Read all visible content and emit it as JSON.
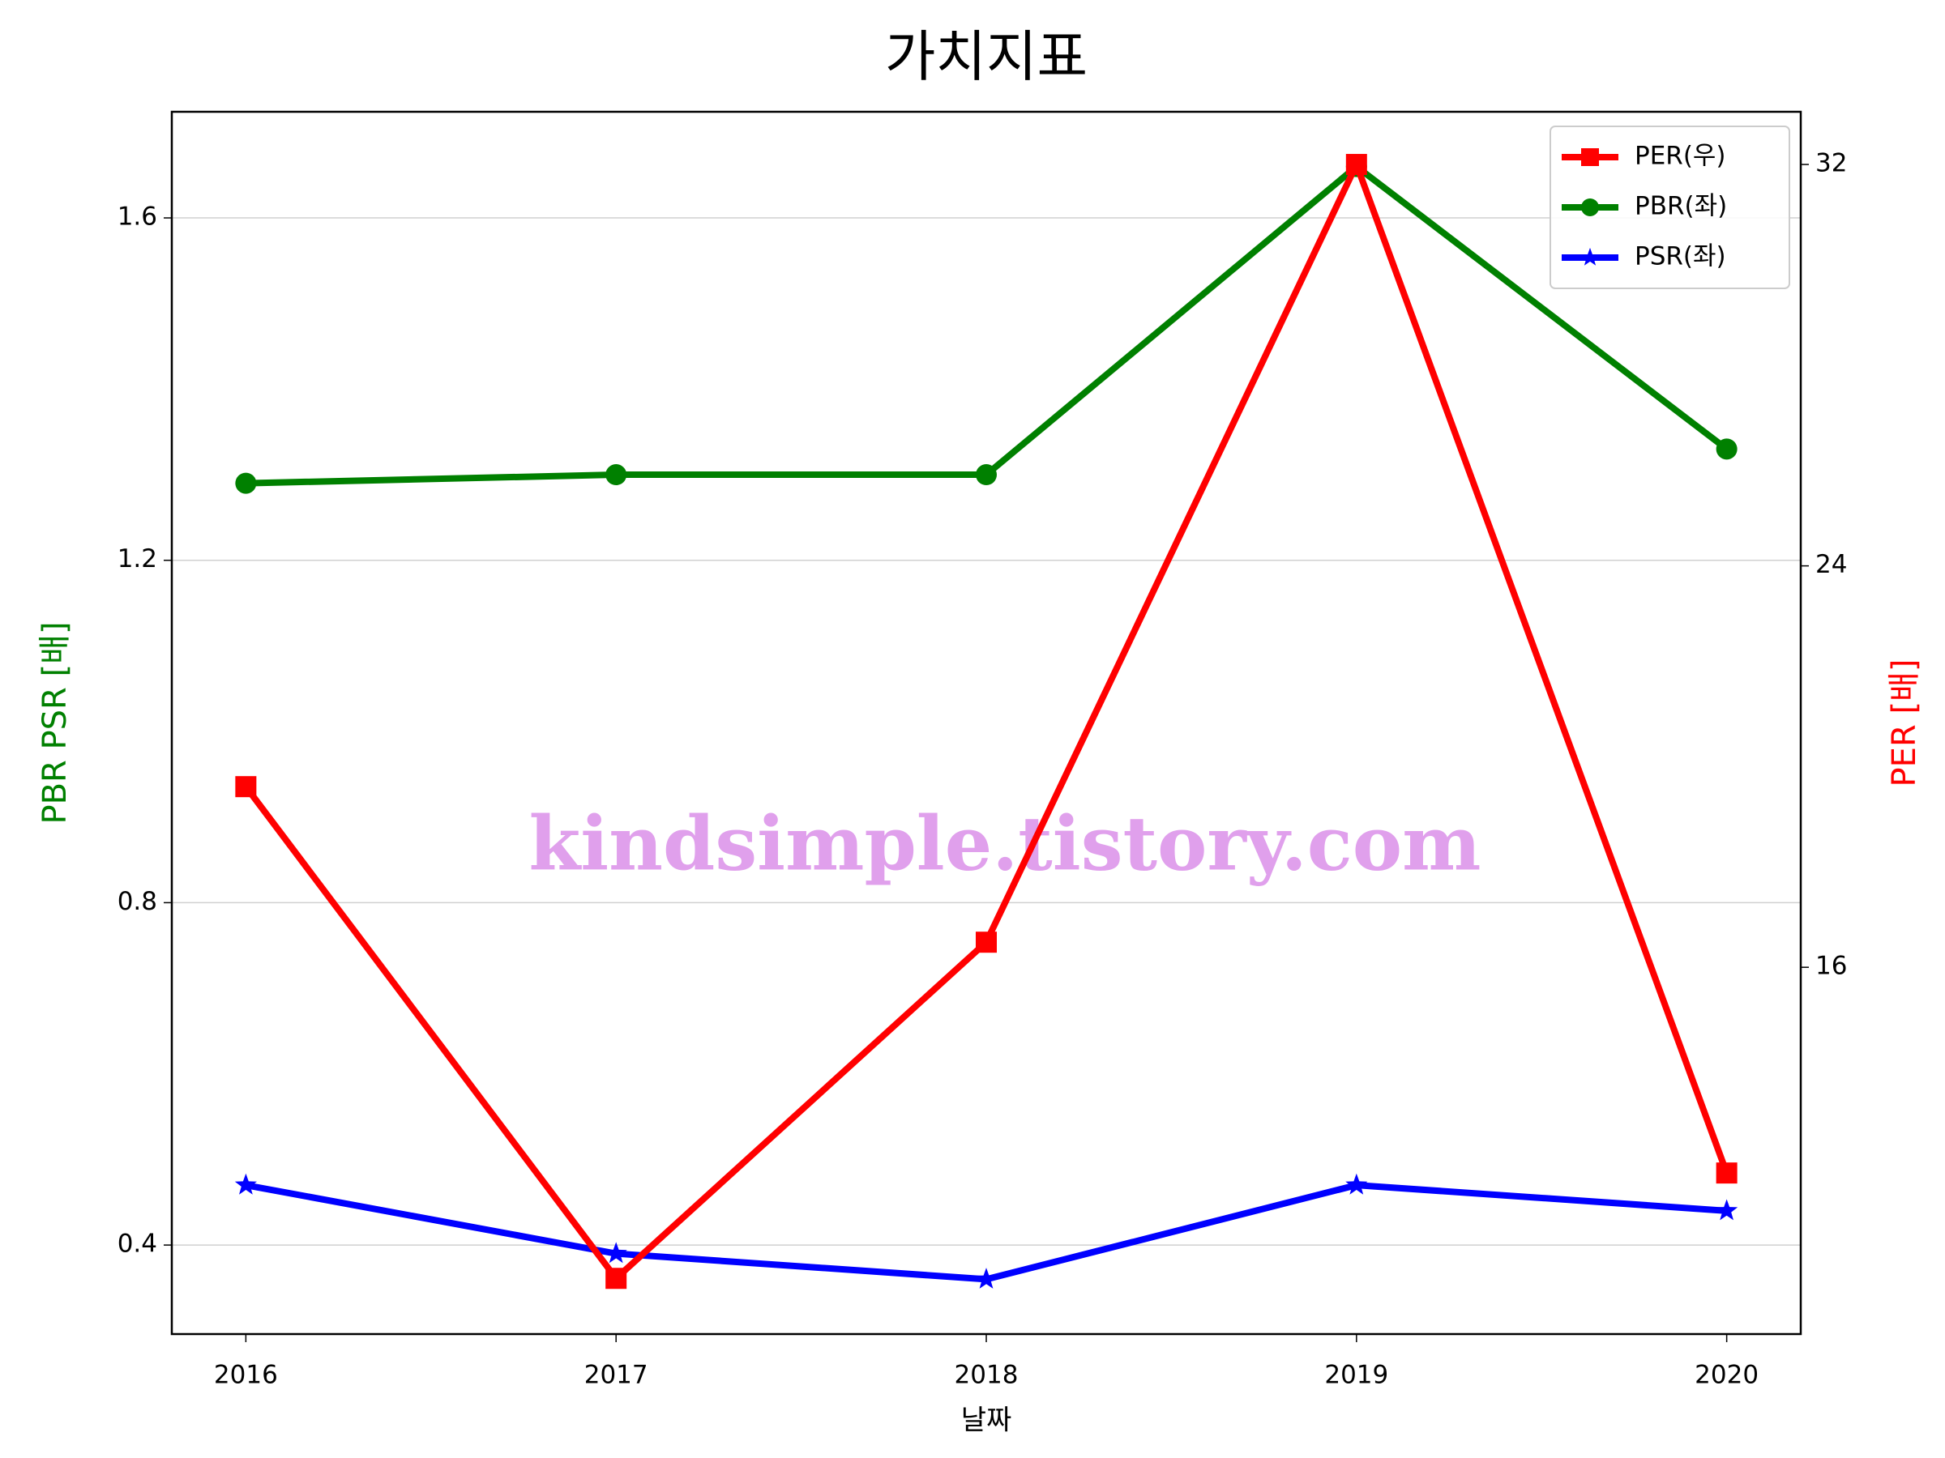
{
  "chart_data": {
    "type": "line",
    "title": "가치지표",
    "xlabel": "날짜",
    "ylabel": "PBR PSR [배]",
    "y2label": "PER [배]",
    "ylabel_color": "green",
    "y2label_color": "red",
    "x": [
      2016,
      2017,
      2018,
      2019,
      2020
    ],
    "xlim": [
      2015.8,
      2020.2
    ],
    "xticks": [
      2016,
      2017,
      2018,
      2019,
      2020
    ],
    "ylim": [
      0.296,
      1.724
    ],
    "yticks": [
      0.4,
      0.8,
      1.2,
      1.6
    ],
    "y2lim": [
      8.69,
      33.05
    ],
    "y2ticks": [
      16,
      24,
      32
    ],
    "grid": true,
    "legend": "upper right",
    "watermark": "kindsimple.tistory.com",
    "series": [
      {
        "name": "PER(우)",
        "color": "#ff0000",
        "marker": "square",
        "axis": "y2",
        "values": [
          19.6,
          9.8,
          16.5,
          32.0,
          11.9
        ]
      },
      {
        "name": "PBR(좌)",
        "color": "#008000",
        "marker": "circle",
        "values": [
          1.29,
          1.3,
          1.3,
          1.66,
          1.33
        ]
      },
      {
        "name": "PSR(좌)",
        "color": "#0000ff",
        "marker": "star",
        "values": [
          0.47,
          0.39,
          0.36,
          0.47,
          0.44
        ]
      }
    ]
  }
}
